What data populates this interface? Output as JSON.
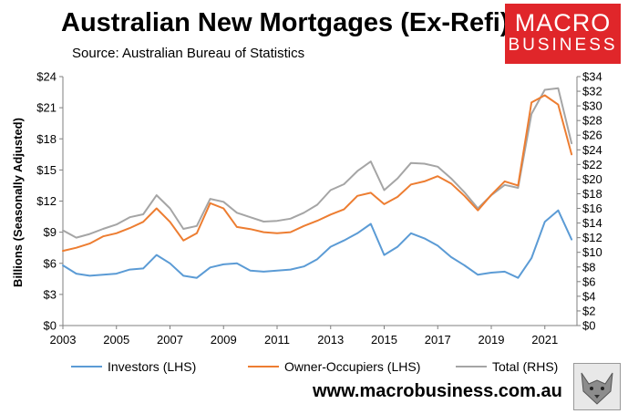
{
  "header": {
    "title": "Australian New Mortgages (Ex-Refi)",
    "source": "Source: Australian Bureau of Statistics",
    "logo_line1": "MACRO",
    "logo_line2": "BUSINESS"
  },
  "footer": {
    "website": "www.macrobusiness.com.au"
  },
  "colors": {
    "investors": "#5b9bd5",
    "owner_occupiers": "#ed7d31",
    "total": "#a5a5a5",
    "brand": "#e0262a"
  },
  "chart_data": {
    "type": "line",
    "title": "Australian New Mortgages (Ex-Refi)",
    "ylabel": "Billions (Seasonally Adjusted)",
    "ylim_left": [
      0,
      24
    ],
    "ylim_right": [
      0,
      34
    ],
    "xlim": [
      2003,
      2022.2
    ],
    "grid": false,
    "legend_position": "bottom",
    "x_ticks": [
      "2003",
      "2005",
      "2007",
      "2009",
      "2011",
      "2013",
      "2015",
      "2017",
      "2019",
      "2021"
    ],
    "y_ticks_left": [
      "$0",
      "$3",
      "$6",
      "$9",
      "$12",
      "$15",
      "$18",
      "$21",
      "$24"
    ],
    "y_ticks_right": [
      "$0",
      "$2",
      "$4",
      "$6",
      "$8",
      "$10",
      "$12",
      "$14",
      "$16",
      "$18",
      "$20",
      "$22",
      "$24",
      "$26",
      "$28",
      "$30",
      "$32",
      "$34"
    ],
    "x": [
      2003.0,
      2003.5,
      2004.0,
      2004.5,
      2005.0,
      2005.5,
      2006.0,
      2006.5,
      2007.0,
      2007.5,
      2008.0,
      2008.5,
      2009.0,
      2009.5,
      2010.0,
      2010.5,
      2011.0,
      2011.5,
      2012.0,
      2012.5,
      2013.0,
      2013.5,
      2014.0,
      2014.5,
      2015.0,
      2015.5,
      2016.0,
      2016.5,
      2017.0,
      2017.5,
      2018.0,
      2018.5,
      2019.0,
      2019.5,
      2020.0,
      2020.5,
      2021.0,
      2021.5,
      2022.0
    ],
    "series": [
      {
        "name": "Investors (LHS)",
        "axis": "left",
        "values": [
          5.8,
          5.0,
          4.8,
          4.9,
          5.0,
          5.4,
          5.5,
          6.8,
          6.0,
          4.8,
          4.6,
          5.6,
          5.9,
          6.0,
          5.3,
          5.2,
          5.3,
          5.4,
          5.7,
          6.4,
          7.6,
          8.2,
          8.9,
          9.8,
          6.8,
          7.6,
          8.9,
          8.4,
          7.7,
          6.6,
          5.8,
          4.9,
          5.1,
          5.2,
          4.6,
          6.5,
          10.0,
          11.1,
          8.3
        ]
      },
      {
        "name": "Owner-Occupiers (LHS)",
        "axis": "left",
        "values": [
          7.2,
          7.5,
          7.9,
          8.6,
          8.9,
          9.4,
          10.0,
          11.3,
          10.0,
          8.2,
          8.9,
          11.8,
          11.3,
          9.5,
          9.3,
          9.0,
          8.9,
          9.0,
          9.6,
          10.1,
          10.7,
          11.2,
          12.5,
          12.8,
          11.7,
          12.4,
          13.6,
          13.9,
          14.4,
          13.7,
          12.5,
          11.1,
          12.6,
          13.9,
          13.5,
          21.5,
          22.2,
          21.3,
          16.5
        ]
      },
      {
        "name": "Total (RHS)",
        "axis": "right",
        "values": [
          13.0,
          12.0,
          12.5,
          13.2,
          13.8,
          14.8,
          15.2,
          17.8,
          16.0,
          13.2,
          13.6,
          17.3,
          16.9,
          15.4,
          14.8,
          14.2,
          14.3,
          14.6,
          15.4,
          16.5,
          18.5,
          19.3,
          21.1,
          22.4,
          18.5,
          20.1,
          22.2,
          22.1,
          21.7,
          20.1,
          18.2,
          16.0,
          17.8,
          19.2,
          18.8,
          28.9,
          32.2,
          32.4,
          24.9
        ]
      }
    ]
  }
}
